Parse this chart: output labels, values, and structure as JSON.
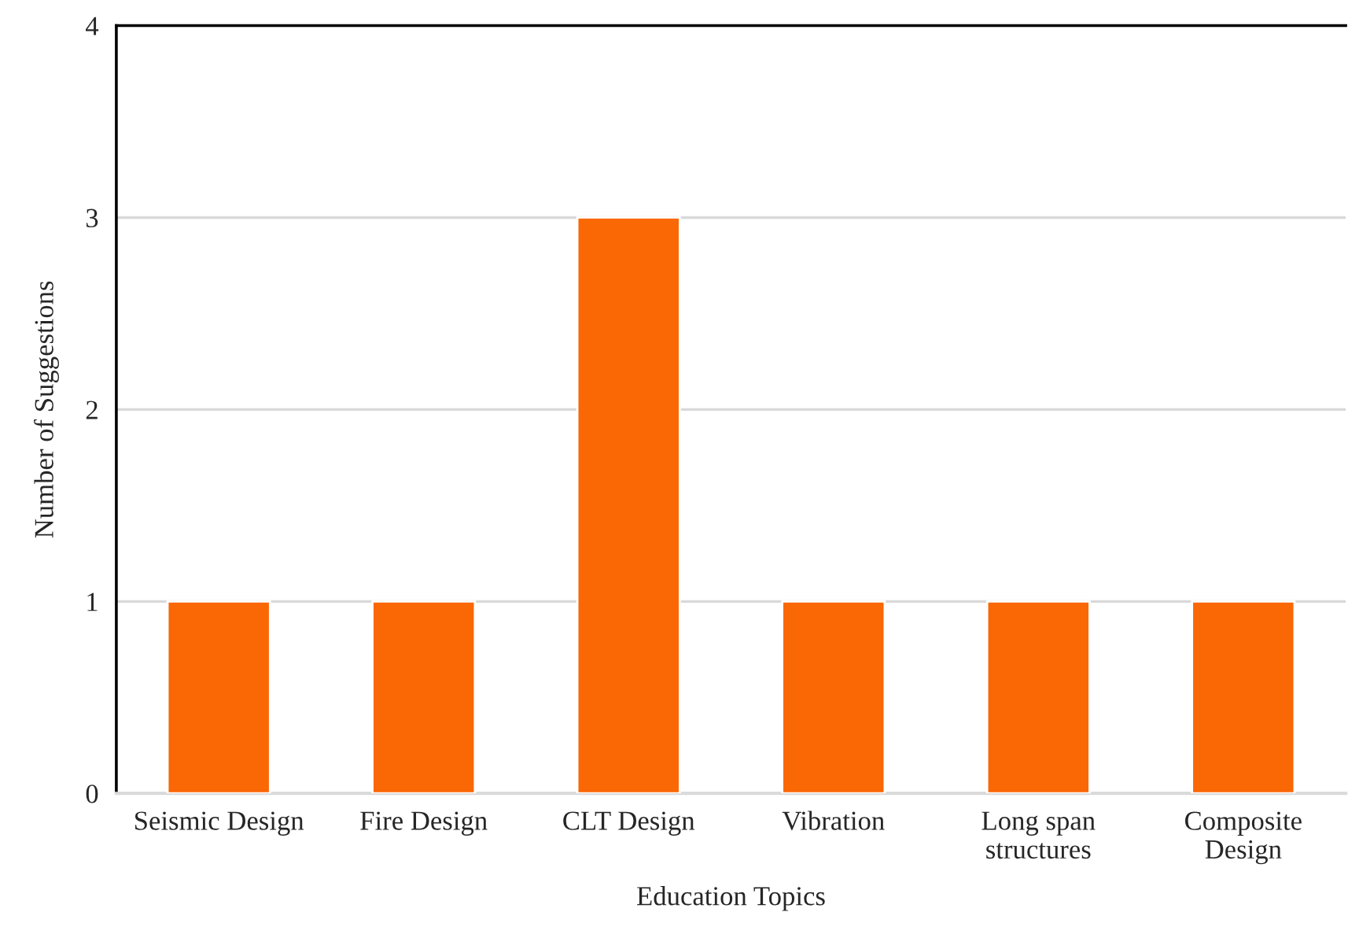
{
  "chart_data": {
    "type": "bar",
    "xlabel": "Education Topics",
    "ylabel": "Number of Suggestions",
    "categories": [
      "Seismic Design",
      "Fire Design",
      "CLT Design",
      "Vibration",
      "Long span\nstructures",
      "Composite\nDesign"
    ],
    "values": [
      1,
      1,
      3,
      1,
      1,
      1
    ],
    "color": "#fa6705",
    "ylim": [
      0,
      4
    ],
    "yticks": [
      0,
      1,
      2,
      3,
      4
    ],
    "grid": "y"
  }
}
